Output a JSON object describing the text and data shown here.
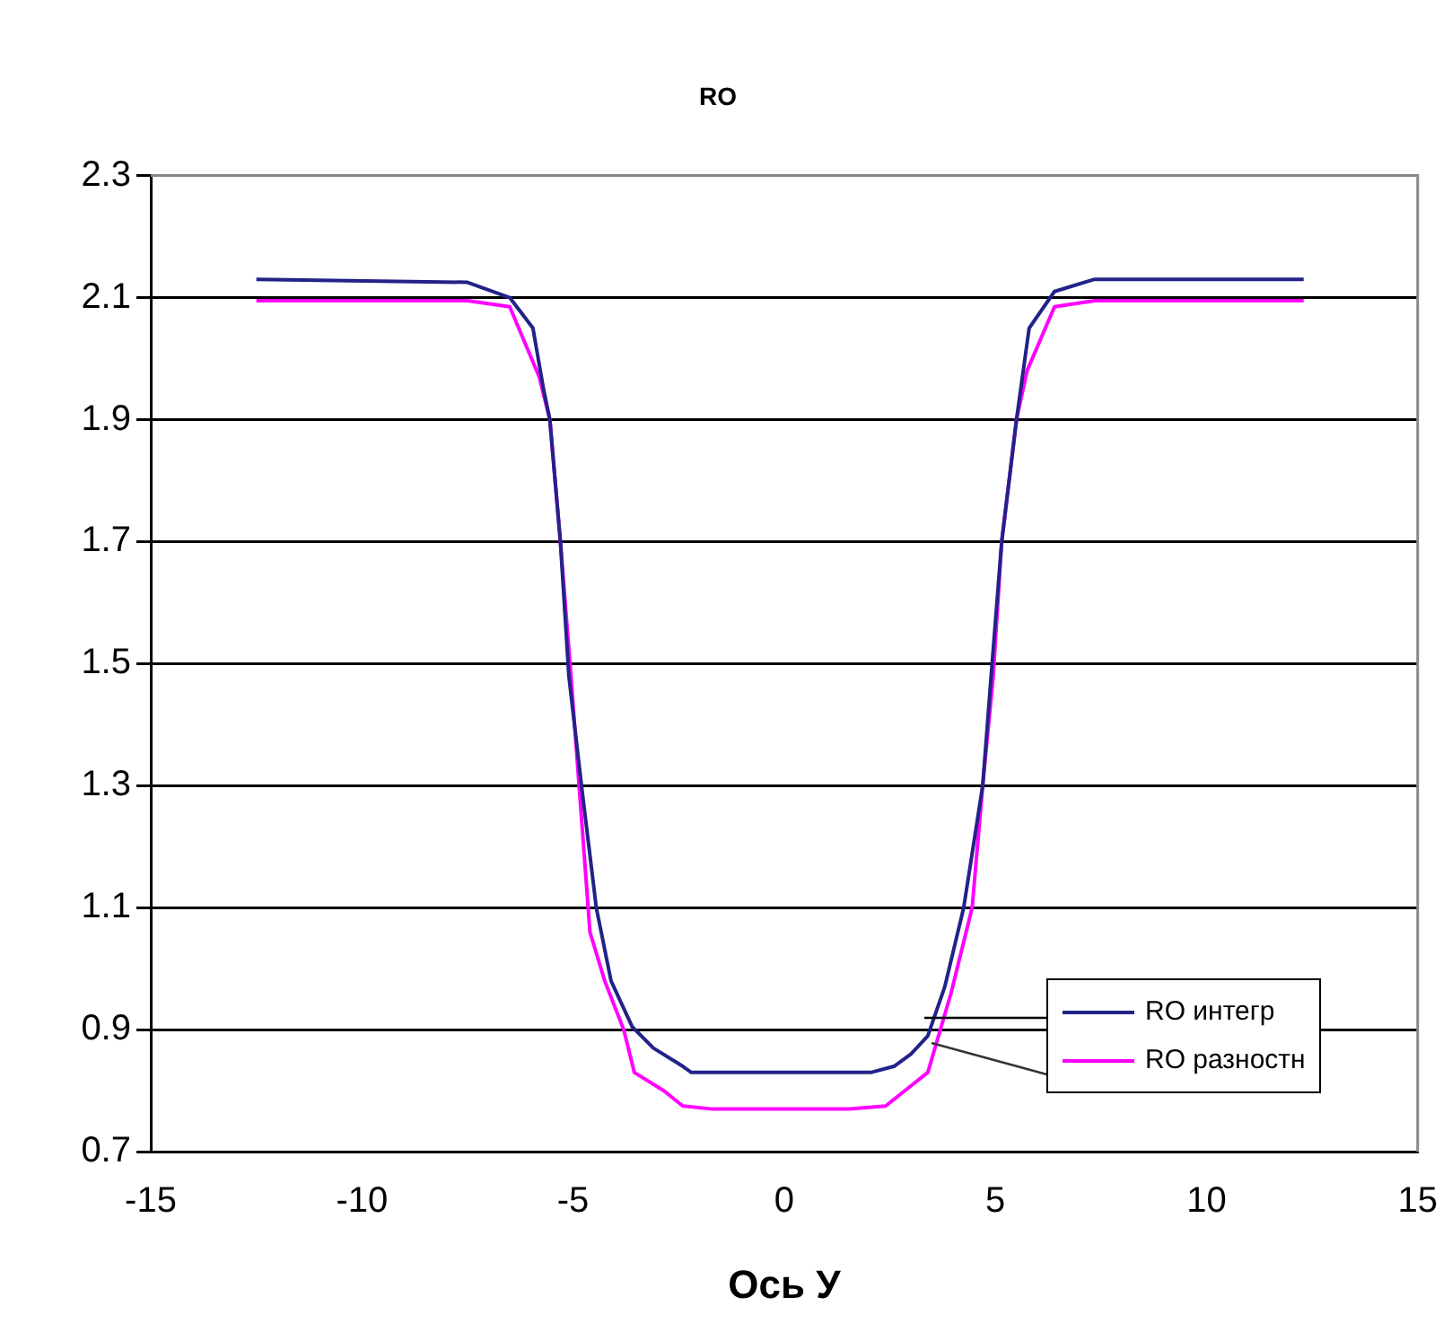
{
  "chart_data": {
    "type": "line",
    "title": "RO",
    "xlabel": "Ось У",
    "xlim": [
      -15,
      15
    ],
    "xticks": [
      -15,
      -10,
      -5,
      0,
      5,
      10,
      15
    ],
    "ylim": [
      0.7,
      2.3
    ],
    "yticks": [
      0.7,
      0.9,
      1.1,
      1.3,
      1.5,
      1.7,
      1.9,
      2.1,
      2.3
    ],
    "grid": "y",
    "legend": "bottom right",
    "marker": "none",
    "line_style": "solid",
    "series": [
      {
        "name": "RO интегр",
        "color": "#222288",
        "x": [
          -12.5,
          -7.5,
          -6.5,
          -5.95,
          -5.7,
          -5.55,
          -5.3,
          -5.1,
          -4.8,
          -4.45,
          -4.1,
          -3.6,
          -3.1,
          -2.4,
          -2.2,
          2.05,
          2.6,
          3.0,
          3.4,
          3.8,
          4.25,
          4.7,
          4.9,
          5.15,
          5.5,
          5.8,
          6.4,
          7.35,
          12.3
        ],
        "values": [
          2.13,
          2.125,
          2.1,
          2.05,
          1.95,
          1.9,
          1.7,
          1.48,
          1.3,
          1.1,
          0.98,
          0.905,
          0.87,
          0.84,
          0.83,
          0.83,
          0.84,
          0.86,
          0.89,
          0.97,
          1.1,
          1.3,
          1.48,
          1.7,
          1.9,
          2.05,
          2.11,
          2.13,
          2.13
        ]
      },
      {
        "name": "RO разностн",
        "color": "#ff00ff",
        "x": [
          -12.5,
          -7.5,
          -6.5,
          -5.8,
          -5.55,
          -5.3,
          -5.05,
          -4.75,
          -4.6,
          -4.25,
          -3.8,
          -3.55,
          -2.85,
          -2.4,
          -1.7,
          1.55,
          2.4,
          3.4,
          3.95,
          4.45,
          4.7,
          4.95,
          5.15,
          5.5,
          5.75,
          6.4,
          7.35,
          12.3
        ],
        "values": [
          2.095,
          2.095,
          2.085,
          1.97,
          1.9,
          1.7,
          1.48,
          1.2,
          1.06,
          0.98,
          0.9,
          0.83,
          0.8,
          0.775,
          0.77,
          0.77,
          0.775,
          0.83,
          0.96,
          1.1,
          1.3,
          1.48,
          1.7,
          1.9,
          1.98,
          2.085,
          2.095,
          2.095
        ]
      }
    ]
  }
}
